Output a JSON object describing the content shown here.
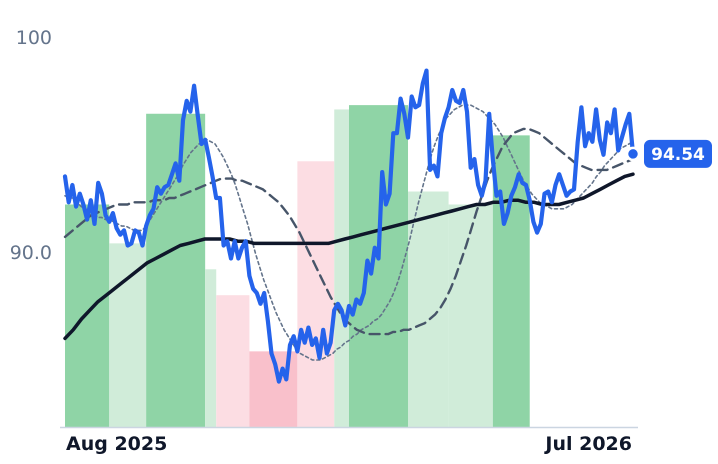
{
  "chart_data": {
    "type": "line",
    "title": "",
    "xlabel": "",
    "ylabel": "",
    "x_ticks": [
      "Aug 2025",
      "Jul 2026"
    ],
    "y_ticks": [
      100,
      90.0
    ],
    "y_tick_labels": [
      "100",
      "90.0"
    ],
    "ylim": [
      82,
      101.5
    ],
    "grid": false,
    "legend": "none",
    "last_value_label": "94.54",
    "colors": {
      "price": "#2563eb",
      "ma_fast": "#64748b",
      "ma_mid": "#475569",
      "ma_slow": "#0f172a",
      "band_green_strong": "#8fd4a6",
      "band_green_light": "#d0ecd9",
      "band_red_light": "#fcdde3",
      "band_red_strong": "#f9c0cb",
      "badge": "#2563eb"
    },
    "bands": [
      {
        "from": 0,
        "to": 12,
        "tone": "green_strong",
        "level": 92.2
      },
      {
        "from": 12,
        "to": 22,
        "tone": "green_light",
        "level": 90.4
      },
      {
        "from": 22,
        "to": 38,
        "tone": "green_strong",
        "level": 96.4
      },
      {
        "from": 38,
        "to": 41,
        "tone": "green_light",
        "level": 89.2
      },
      {
        "from": 41,
        "to": 50,
        "tone": "red_light",
        "level": 88.0
      },
      {
        "from": 50,
        "to": 63,
        "tone": "red_strong",
        "level": 85.4
      },
      {
        "from": 63,
        "to": 73,
        "tone": "red_light",
        "level": 94.2
      },
      {
        "from": 73,
        "to": 77,
        "tone": "green_light",
        "level": 96.6
      },
      {
        "from": 77,
        "to": 93,
        "tone": "green_strong",
        "level": 96.8
      },
      {
        "from": 93,
        "to": 104,
        "tone": "green_light",
        "level": 92.8
      },
      {
        "from": 104,
        "to": 116,
        "tone": "green_light",
        "level": 92.2
      },
      {
        "from": 116,
        "to": 126,
        "tone": "green_strong",
        "level": 95.4
      }
    ],
    "series": [
      {
        "role": "price",
        "values": [
          93.5,
          92.3,
          93.1,
          92.1,
          92.7,
          92.2,
          91.5,
          92.4,
          91.3,
          93.2,
          92.7,
          91.7,
          91.4,
          91.8,
          91.1,
          90.8,
          91.0,
          90.3,
          90.4,
          91.0,
          90.9,
          90.3,
          91.2,
          91.7,
          92.0,
          93.0,
          92.7,
          93.0,
          93.1,
          93.6,
          94.1,
          93.3,
          96.1,
          97.0,
          96.5,
          97.7,
          96.3,
          95.0,
          95.2,
          94.4,
          93.5,
          92.5,
          92.5,
          90.3,
          90.5,
          89.7,
          90.5,
          89.7,
          90.2,
          90.5,
          88.9,
          88.3,
          88.1,
          87.6,
          88.1,
          86.8,
          85.3,
          84.8,
          84.0,
          84.6,
          84.1,
          85.7,
          86.1,
          85.4,
          86.4,
          85.8,
          86.5,
          85.7,
          86.0,
          85.1,
          86.4,
          85.3,
          85.8,
          87.3,
          87.6,
          87.3,
          86.6,
          87.5,
          87.1,
          87.8,
          87.6,
          88.1,
          89.6,
          89.0,
          90.2,
          89.7,
          93.7,
          92.2,
          92.7,
          95.5,
          95.5,
          97.1,
          96.4,
          95.3,
          97.2,
          96.7,
          96.8,
          97.8,
          98.4,
          93.8,
          94.0,
          93.5,
          95.5,
          96.2,
          96.7,
          97.5,
          97.0,
          96.9,
          97.5,
          96.5,
          93.9,
          94.3,
          93.1,
          92.6,
          93.3,
          96.4,
          94.3,
          92.6,
          92.8,
          91.3,
          91.8,
          92.6,
          93.0,
          93.6,
          93.2,
          93.1,
          92.4,
          91.4,
          90.9,
          91.3,
          92.7,
          92.8,
          92.3,
          93.1,
          93.6,
          93.1,
          92.6,
          92.8,
          92.9,
          95.1,
          96.7,
          94.9,
          95.5,
          95.1,
          96.6,
          95.2,
          94.5,
          96.0,
          95.5,
          96.6,
          94.7,
          95.3,
          95.9,
          96.4,
          94.54
        ]
      },
      {
        "role": "ma_fast",
        "values": [
          92.6,
          92.5,
          92.5,
          92.3,
          92.1,
          92.0,
          91.9,
          91.8,
          91.6,
          91.6,
          91.5,
          91.5,
          91.4,
          91.3,
          91.2,
          91.2,
          91.1,
          91.0,
          91.0,
          91.0,
          91.2,
          91.5,
          91.8,
          92.1,
          92.4,
          92.7,
          93.0,
          93.3,
          93.6,
          94.0,
          94.3,
          94.6,
          94.8,
          95.0,
          95.1,
          95.2,
          95.1,
          95.0,
          94.7,
          94.4,
          94.0,
          93.6,
          93.1,
          92.5,
          91.9,
          91.3,
          90.6,
          89.9,
          89.3,
          88.7,
          88.2,
          87.7,
          87.2,
          86.8,
          86.4,
          86.1,
          85.8,
          85.5,
          85.3,
          85.2,
          85.1,
          85.0,
          85.0,
          85.0,
          85.1,
          85.2,
          85.3,
          85.5,
          85.6,
          85.8,
          85.9,
          86.1,
          86.2,
          86.4,
          86.5,
          86.6,
          86.8,
          86.9,
          87.1,
          87.4,
          87.7,
          88.1,
          88.6,
          89.2,
          89.9,
          90.6,
          91.4,
          92.2,
          92.9,
          93.6,
          94.3,
          94.9,
          95.4,
          95.8,
          96.2,
          96.4,
          96.6,
          96.7,
          96.8,
          96.8,
          96.8,
          96.7,
          96.6,
          96.5,
          96.3,
          96.1,
          95.9,
          95.6,
          95.3,
          94.9,
          94.5,
          94.1,
          93.7,
          93.3,
          93.0,
          92.7,
          92.5,
          92.3,
          92.2,
          92.1,
          92.0,
          92.0,
          92.0,
          92.0,
          92.1,
          92.2,
          92.4,
          92.6,
          92.8,
          93.0,
          93.2,
          93.5,
          93.7,
          94.0,
          94.2,
          94.4,
          94.6,
          94.8,
          94.9,
          95.0,
          95.1
        ]
      },
      {
        "role": "ma_mid",
        "values": [
          90.7,
          90.9,
          91.1,
          91.3,
          91.5,
          91.7,
          91.8,
          91.9,
          92.0,
          92.1,
          92.2,
          92.2,
          92.2,
          92.3,
          92.3,
          92.3,
          92.3,
          92.4,
          92.4,
          92.4,
          92.5,
          92.5,
          92.6,
          92.7,
          92.8,
          92.9,
          93.0,
          93.1,
          93.2,
          93.3,
          93.4,
          93.4,
          93.4,
          93.3,
          93.3,
          93.2,
          93.1,
          93.0,
          92.9,
          92.7,
          92.5,
          92.3,
          92.0,
          91.7,
          91.3,
          90.9,
          90.4,
          89.9,
          89.4,
          88.9,
          88.4,
          87.9,
          87.5,
          87.1,
          86.8,
          86.6,
          86.4,
          86.3,
          86.2,
          86.2,
          86.2,
          86.2,
          86.2,
          86.3,
          86.3,
          86.4,
          86.4,
          86.5,
          86.6,
          86.7,
          86.9,
          87.1,
          87.4,
          87.8,
          88.3,
          88.9,
          89.6,
          90.3,
          91.1,
          91.9,
          92.6,
          93.3,
          93.9,
          94.4,
          94.9,
          95.2,
          95.5,
          95.6,
          95.7,
          95.7,
          95.6,
          95.5,
          95.3,
          95.1,
          94.9,
          94.7,
          94.5,
          94.3,
          94.1,
          94.0,
          93.9,
          93.8,
          93.8,
          93.8,
          93.8,
          93.9,
          94.0,
          94.1,
          94.2,
          94.3
        ]
      },
      {
        "role": "ma_slow",
        "values": [
          86.0,
          86.4,
          86.9,
          87.3,
          87.7,
          88.0,
          88.3,
          88.6,
          88.9,
          89.2,
          89.5,
          89.7,
          89.9,
          90.1,
          90.3,
          90.4,
          90.5,
          90.6,
          90.6,
          90.6,
          90.6,
          90.5,
          90.5,
          90.4,
          90.4,
          90.4,
          90.4,
          90.4,
          90.4,
          90.4,
          90.4,
          90.4,
          90.4,
          90.5,
          90.6,
          90.7,
          90.8,
          90.9,
          91.0,
          91.1,
          91.2,
          91.3,
          91.4,
          91.5,
          91.6,
          91.7,
          91.8,
          91.9,
          92.0,
          92.1,
          92.2,
          92.2,
          92.3,
          92.3,
          92.4,
          92.4,
          92.3,
          92.3,
          92.2,
          92.2,
          92.2,
          92.3,
          92.4,
          92.5,
          92.7,
          92.9,
          93.1,
          93.3,
          93.5,
          93.6
        ]
      }
    ]
  }
}
